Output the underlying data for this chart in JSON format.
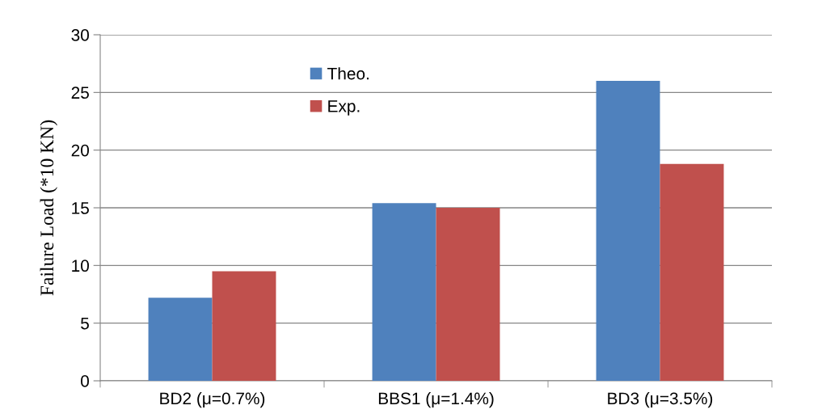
{
  "chart_data": {
    "type": "bar",
    "ylabel": "Failure Load (*10 KN)",
    "categories": [
      "BD2 (μ=0.7%)",
      "BBS1 (μ=1.4%)",
      "BD3 (μ=3.5%)"
    ],
    "series": [
      {
        "name": "Theo.",
        "color": "#4f81bd",
        "values": [
          7.2,
          15.4,
          26.0
        ]
      },
      {
        "name": "Exp.",
        "color": "#c0504d",
        "values": [
          9.5,
          15.0,
          18.8
        ]
      }
    ],
    "ylim": [
      0,
      30
    ],
    "yticks": [
      0,
      5,
      10,
      15,
      20,
      25,
      30
    ],
    "grid": "y",
    "legend": "top left"
  }
}
